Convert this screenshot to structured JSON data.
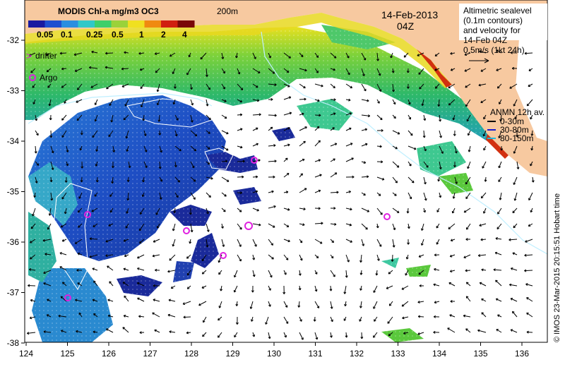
{
  "colorbar": {
    "title": "MODIS Chl-a mg/m3 OC3",
    "ticks": [
      "0.05",
      "0.1",
      "0.25",
      "0.5",
      "1",
      "2",
      "4"
    ],
    "colors": [
      "#1a1aa0",
      "#1f4fd0",
      "#2a8ee0",
      "#30c8c8",
      "#3ecf6a",
      "#9ad23a",
      "#f0e020",
      "#f08a10",
      "#d02010",
      "#7a0808"
    ]
  },
  "map": {
    "date": "14-Feb-2013",
    "time": "04Z",
    "contour_label": "200m",
    "altimetry_note": [
      "Altimetric sealevel",
      "(0.1m contours)",
      "and velocity for",
      "14-Feb 04Z"
    ],
    "scale_text": "0.5m/s (1kt 24h)",
    "legend": {
      "drifter": "drifter",
      "argo": "Argo"
    },
    "anmn": {
      "title": "ANMN 12h av.",
      "items": [
        {
          "label": "0-30m",
          "color": "#000000"
        },
        {
          "label": "30-80m",
          "color": "#1a1ad0"
        },
        {
          "label": "80-150m",
          "color": "#20b8d8"
        }
      ]
    },
    "credit": "© IMOS 23-Mar-2015 20:15:51 Hobart time",
    "x_ticks": [
      "124",
      "125",
      "126",
      "127",
      "128",
      "129",
      "130",
      "131",
      "132",
      "133",
      "134",
      "135",
      "136"
    ],
    "y_ticks": [
      "-32",
      "-33",
      "-34",
      "-35",
      "-36",
      "-37",
      "-38"
    ],
    "colors": {
      "land": "#f7c9a0",
      "shelf_green": "#5ac83c",
      "offshore_blue": "#2050c8",
      "argo": "#e020e0",
      "contour": "#bfefff"
    }
  }
}
